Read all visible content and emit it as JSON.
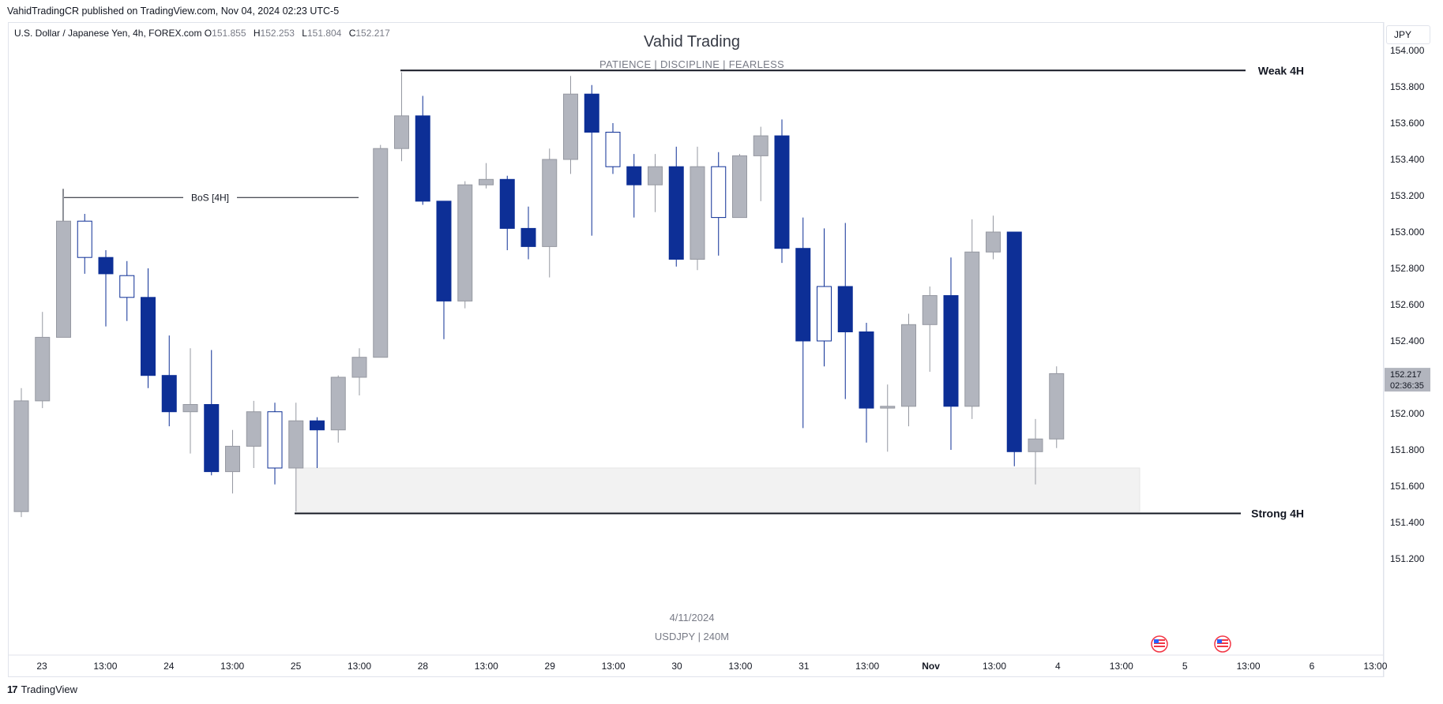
{
  "header": {
    "published": "VahidTradingCR published on TradingView.com, Nov 04, 2024 02:23 UTC-5",
    "symbol_name": "U.S. Dollar / Japanese Yen, 4h, FOREX.com",
    "ohlc": {
      "o_label": "O",
      "o": "151.855",
      "h_label": "H",
      "h": "152.253",
      "l_label": "L",
      "l": "151.804",
      "c_label": "C",
      "c": "152.217"
    },
    "currency": "JPY"
  },
  "watermark": {
    "title": "Vahid Trading",
    "subtitle": "PATIENCE  |  DISCIPLINE  |  FEARLESS",
    "date": "4/11/2024",
    "symbol": "USDJPY  |  240M"
  },
  "footer": {
    "brand": "TradingView",
    "logo": "tradingview-logo"
  },
  "colors": {
    "up": "#b2b5be",
    "down": "#0d2f96",
    "hollow_border": "#0d2f96",
    "zone": "#f2f2f2",
    "price_tag": "#b2b5be"
  },
  "chart_data": {
    "type": "candlestick",
    "ylim": [
      151.2,
      154.1
    ],
    "y_ticks": [
      "154.000",
      "153.800",
      "153.600",
      "153.400",
      "153.200",
      "153.000",
      "152.800",
      "152.600",
      "152.400",
      "152.200",
      "152.000",
      "151.800",
      "151.600",
      "151.400",
      "151.200"
    ],
    "x_ticks": [
      "23",
      "13:00",
      "24",
      "13:00",
      "25",
      "13:00",
      "28",
      "13:00",
      "29",
      "13:00",
      "30",
      "13:00",
      "31",
      "13:00",
      "Nov",
      "13:00",
      "4",
      "13:00",
      "5",
      "13:00",
      "6",
      "13:00"
    ],
    "last_price": {
      "value": 152.217,
      "label": "152.217",
      "countdown": "02:36:35"
    },
    "candles": [
      {
        "o": 151.46,
        "h": 152.14,
        "l": 151.43,
        "c": 152.07
      },
      {
        "o": 152.07,
        "h": 152.56,
        "l": 152.03,
        "c": 152.42
      },
      {
        "o": 152.42,
        "h": 153.2,
        "l": 152.42,
        "c": 153.06
      },
      {
        "o": 152.86,
        "h": 153.1,
        "l": 152.77,
        "c": 153.06,
        "hollow": true
      },
      {
        "o": 152.86,
        "h": 152.9,
        "l": 152.48,
        "c": 152.77
      },
      {
        "o": 152.64,
        "h": 152.84,
        "l": 152.51,
        "c": 152.76,
        "hollow": true
      },
      {
        "o": 152.64,
        "h": 152.8,
        "l": 152.14,
        "c": 152.21
      },
      {
        "o": 152.21,
        "h": 152.43,
        "l": 151.93,
        "c": 152.01
      },
      {
        "o": 152.01,
        "h": 152.36,
        "l": 151.78,
        "c": 152.05
      },
      {
        "o": 152.05,
        "h": 152.35,
        "l": 151.66,
        "c": 151.68
      },
      {
        "o": 151.68,
        "h": 151.91,
        "l": 151.56,
        "c": 151.82
      },
      {
        "o": 151.82,
        "h": 152.07,
        "l": 151.7,
        "c": 152.01
      },
      {
        "o": 151.7,
        "h": 152.06,
        "l": 151.61,
        "c": 152.01,
        "hollow": true
      },
      {
        "o": 151.7,
        "h": 152.06,
        "l": 151.46,
        "c": 151.96
      },
      {
        "o": 151.96,
        "h": 151.98,
        "l": 151.7,
        "c": 151.91
      },
      {
        "o": 151.91,
        "h": 152.21,
        "l": 151.84,
        "c": 152.2
      },
      {
        "o": 152.2,
        "h": 152.36,
        "l": 152.1,
        "c": 152.31
      },
      {
        "o": 152.31,
        "h": 153.48,
        "l": 152.31,
        "c": 153.46
      },
      {
        "o": 153.46,
        "h": 153.88,
        "l": 153.39,
        "c": 153.64
      },
      {
        "o": 153.64,
        "h": 153.75,
        "l": 153.15,
        "c": 153.17
      },
      {
        "o": 153.17,
        "h": 153.17,
        "l": 152.41,
        "c": 152.62
      },
      {
        "o": 152.62,
        "h": 153.28,
        "l": 152.58,
        "c": 153.26
      },
      {
        "o": 153.26,
        "h": 153.38,
        "l": 153.24,
        "c": 153.29
      },
      {
        "o": 153.29,
        "h": 153.31,
        "l": 152.9,
        "c": 153.02
      },
      {
        "o": 153.02,
        "h": 153.14,
        "l": 152.85,
        "c": 152.92
      },
      {
        "o": 152.92,
        "h": 153.46,
        "l": 152.75,
        "c": 153.4
      },
      {
        "o": 153.4,
        "h": 153.86,
        "l": 153.32,
        "c": 153.76
      },
      {
        "o": 153.76,
        "h": 153.81,
        "l": 152.98,
        "c": 153.55
      },
      {
        "o": 153.36,
        "h": 153.6,
        "l": 153.32,
        "c": 153.55,
        "hollow": true
      },
      {
        "o": 153.36,
        "h": 153.43,
        "l": 153.08,
        "c": 153.26
      },
      {
        "o": 153.26,
        "h": 153.43,
        "l": 153.11,
        "c": 153.36
      },
      {
        "o": 153.36,
        "h": 153.47,
        "l": 152.81,
        "c": 152.85
      },
      {
        "o": 152.85,
        "h": 153.47,
        "l": 152.79,
        "c": 153.36
      },
      {
        "o": 153.08,
        "h": 153.44,
        "l": 152.87,
        "c": 153.36,
        "hollow": true
      },
      {
        "o": 153.08,
        "h": 153.43,
        "l": 153.08,
        "c": 153.42
      },
      {
        "o": 153.42,
        "h": 153.58,
        "l": 153.17,
        "c": 153.53
      },
      {
        "o": 153.53,
        "h": 153.62,
        "l": 152.83,
        "c": 152.91
      },
      {
        "o": 152.91,
        "h": 153.08,
        "l": 151.92,
        "c": 152.4
      },
      {
        "o": 152.4,
        "h": 153.02,
        "l": 152.26,
        "c": 152.7,
        "hollow": true
      },
      {
        "o": 152.7,
        "h": 153.05,
        "l": 152.08,
        "c": 152.45
      },
      {
        "o": 152.45,
        "h": 152.5,
        "l": 151.84,
        "c": 152.03
      },
      {
        "o": 152.03,
        "h": 152.16,
        "l": 151.79,
        "c": 152.04
      },
      {
        "o": 152.04,
        "h": 152.55,
        "l": 151.93,
        "c": 152.49
      },
      {
        "o": 152.49,
        "h": 152.7,
        "l": 152.23,
        "c": 152.65
      },
      {
        "o": 152.65,
        "h": 152.86,
        "l": 151.8,
        "c": 152.04
      },
      {
        "o": 152.04,
        "h": 153.07,
        "l": 151.97,
        "c": 152.89
      },
      {
        "o": 152.89,
        "h": 153.09,
        "l": 152.85,
        "c": 153.0
      },
      {
        "o": 153.0,
        "h": 153.0,
        "l": 151.71,
        "c": 151.79
      },
      {
        "o": 151.79,
        "h": 151.97,
        "l": 151.61,
        "c": 151.86
      },
      {
        "o": 151.86,
        "h": 152.26,
        "l": 151.81,
        "c": 152.22
      }
    ],
    "annotations": {
      "weak": {
        "label": "Weak 4H",
        "price": 153.89
      },
      "strong": {
        "label": "Strong 4H",
        "price": 151.45
      },
      "bos": {
        "label": "BoS [4H]",
        "price": 153.19
      },
      "zone": {
        "top": 151.7,
        "bottom": 151.46
      }
    }
  }
}
